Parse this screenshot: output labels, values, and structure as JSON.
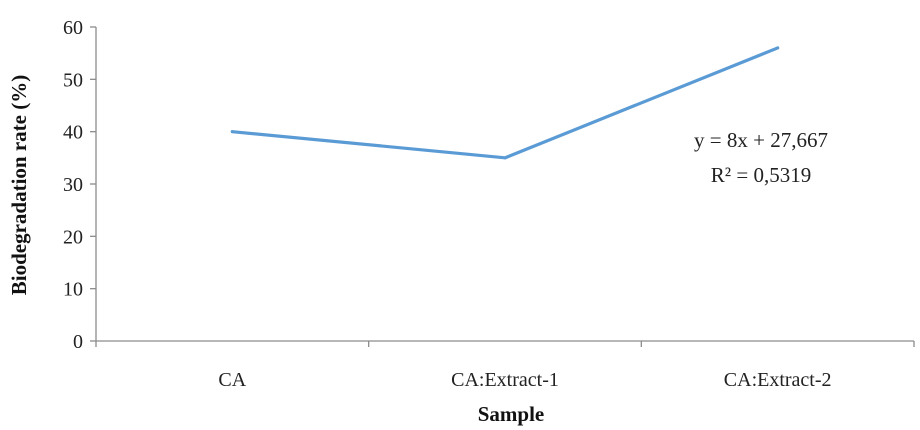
{
  "chart_data": {
    "type": "line",
    "categories": [
      "CA",
      "CA:Extract-1",
      "CA:Extract-2"
    ],
    "series": [
      {
        "values": [
          40,
          35,
          56
        ],
        "color": "#5b9bd5"
      }
    ],
    "title": "",
    "xlabel": "Sample",
    "ylabel": "Biodegradation rate (%)",
    "ylim": [
      0,
      60
    ],
    "yticks": [
      "0",
      "10",
      "20",
      "30",
      "40",
      "50",
      "60"
    ],
    "grid": false,
    "legend": "none",
    "annotations": {
      "equation": "y = 8x + 27,667",
      "r_squared": "R² = 0,5319"
    }
  }
}
